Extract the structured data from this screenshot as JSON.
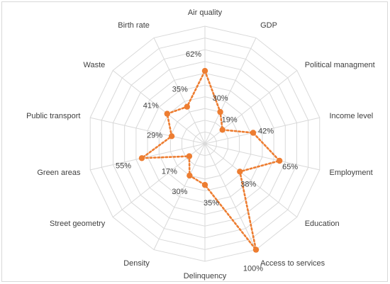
{
  "chart_data": {
    "type": "radar",
    "title": "",
    "categories": [
      "Air quality",
      "GDP",
      "Political managment",
      "Income level",
      "Employment",
      "Education",
      "Access to services",
      "Delinquency",
      "Density",
      "Street geometry",
      "Green areas",
      "Public transport",
      "Waste",
      "Birth rate"
    ],
    "values": [
      62,
      30,
      19,
      42,
      65,
      38,
      100,
      35,
      30,
      17,
      55,
      29,
      41,
      35
    ],
    "value_labels": [
      "62%",
      "30%",
      "19%",
      "42%",
      "65%",
      "38%",
      "100%",
      "35%",
      "30%",
      "17%",
      "55%",
      "29%",
      "41%",
      "35%"
    ],
    "rlim": [
      0,
      100
    ],
    "grid": true,
    "legend": "none",
    "series_color": "#ED7D31"
  }
}
